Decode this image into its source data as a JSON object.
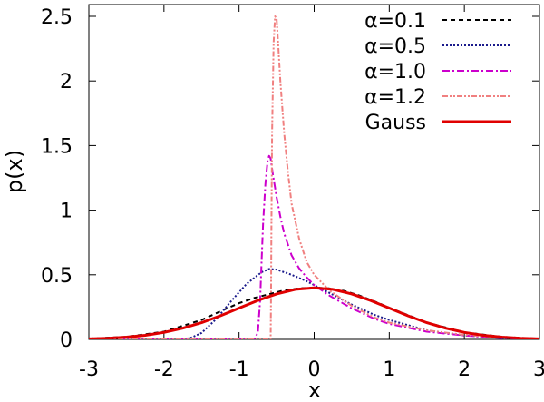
{
  "chart_data": {
    "type": "line",
    "xlabel": "x",
    "ylabel": "p(x)",
    "xlim": [
      -3,
      3
    ],
    "ylim": [
      0,
      2.6
    ],
    "x_ticks": [
      -3,
      -2,
      -1,
      0,
      1,
      2,
      3
    ],
    "x_tick_labels": [
      "-3",
      "-2",
      "-1",
      "0",
      "1",
      "2",
      "3"
    ],
    "y_ticks": [
      0,
      0.5,
      1,
      1.5,
      2,
      2.5
    ],
    "y_tick_labels": [
      "0",
      "0.5",
      "1",
      "1.5",
      "2",
      "2.5"
    ],
    "grid": false,
    "legend_position": "top-right",
    "series": [
      {
        "name": "α=0.1",
        "color": "#000000",
        "dash": "dashed",
        "x": [
          -3.0,
          -2.5,
          -2.0,
          -1.5,
          -1.2,
          -1.0,
          -0.8,
          -0.6,
          -0.4,
          -0.2,
          0.0,
          0.2,
          0.4,
          0.6,
          0.8,
          1.0,
          1.5,
          2.0,
          2.5,
          3.0
        ],
        "y": [
          0.006,
          0.02,
          0.06,
          0.15,
          0.23,
          0.28,
          0.32,
          0.35,
          0.38,
          0.395,
          0.4,
          0.395,
          0.375,
          0.34,
          0.295,
          0.245,
          0.13,
          0.055,
          0.02,
          0.005
        ]
      },
      {
        "name": "α=0.5",
        "color": "#1a1a8c",
        "dash": "dotted",
        "x": [
          -3.0,
          -1.8,
          -1.65,
          -1.5,
          -1.3,
          -1.1,
          -0.9,
          -0.7,
          -0.6,
          -0.5,
          -0.3,
          -0.1,
          0.0,
          0.2,
          0.5,
          0.8,
          1.0,
          1.5,
          2.0,
          2.5,
          3.0
        ],
        "y": [
          0.0,
          0.0,
          0.01,
          0.05,
          0.16,
          0.3,
          0.43,
          0.52,
          0.545,
          0.54,
          0.5,
          0.45,
          0.42,
          0.36,
          0.27,
          0.19,
          0.15,
          0.07,
          0.03,
          0.012,
          0.005
        ]
      },
      {
        "name": "α=1.0",
        "color": "#cc00cc",
        "dash": "dashdot",
        "x": [
          -3.0,
          -0.8,
          -0.75,
          -0.72,
          -0.7,
          -0.68,
          -0.65,
          -0.62,
          -0.6,
          -0.58,
          -0.55,
          -0.5,
          -0.45,
          -0.4,
          -0.3,
          -0.2,
          -0.1,
          0.0,
          0.2,
          0.5,
          0.8,
          1.0,
          1.5,
          2.0,
          2.5,
          3.0
        ],
        "y": [
          0.0,
          0.0,
          0.05,
          0.3,
          0.6,
          0.9,
          1.2,
          1.38,
          1.42,
          1.4,
          1.28,
          1.1,
          0.95,
          0.82,
          0.65,
          0.55,
          0.48,
          0.42,
          0.34,
          0.24,
          0.16,
          0.12,
          0.06,
          0.03,
          0.01,
          0.003
        ]
      },
      {
        "name": "α=1.2",
        "color": "#f08080",
        "dash": "dashdotdot",
        "x": [
          -3.0,
          -0.58,
          -0.575,
          -0.57,
          -0.56,
          -0.54,
          -0.52,
          -0.5,
          -0.48,
          -0.45,
          -0.4,
          -0.35,
          -0.3,
          -0.2,
          -0.1,
          0.0,
          0.2,
          0.5,
          0.8,
          1.0,
          1.5,
          2.0,
          2.5,
          3.0
        ],
        "y": [
          0.0,
          0.0,
          0.3,
          0.8,
          1.6,
          2.3,
          2.5,
          2.48,
          2.3,
          2.0,
          1.6,
          1.3,
          1.05,
          0.78,
          0.6,
          0.5,
          0.38,
          0.26,
          0.17,
          0.13,
          0.07,
          0.035,
          0.015,
          0.005
        ]
      },
      {
        "name": "Gauss",
        "color": "#e00000",
        "dash": "solid",
        "width": 3,
        "x": [
          -3.0,
          -2.75,
          -2.5,
          -2.25,
          -2.0,
          -1.75,
          -1.5,
          -1.25,
          -1.0,
          -0.75,
          -0.5,
          -0.25,
          0.0,
          0.25,
          0.5,
          0.75,
          1.0,
          1.25,
          1.5,
          1.75,
          2.0,
          2.25,
          2.5,
          2.75,
          3.0
        ],
        "y": [
          0.0044,
          0.0091,
          0.0175,
          0.0317,
          0.054,
          0.0863,
          0.1295,
          0.1826,
          0.242,
          0.3011,
          0.3521,
          0.3867,
          0.3989,
          0.3867,
          0.3521,
          0.3011,
          0.242,
          0.1826,
          0.1295,
          0.0863,
          0.054,
          0.0317,
          0.0175,
          0.0091,
          0.0044
        ]
      }
    ]
  }
}
